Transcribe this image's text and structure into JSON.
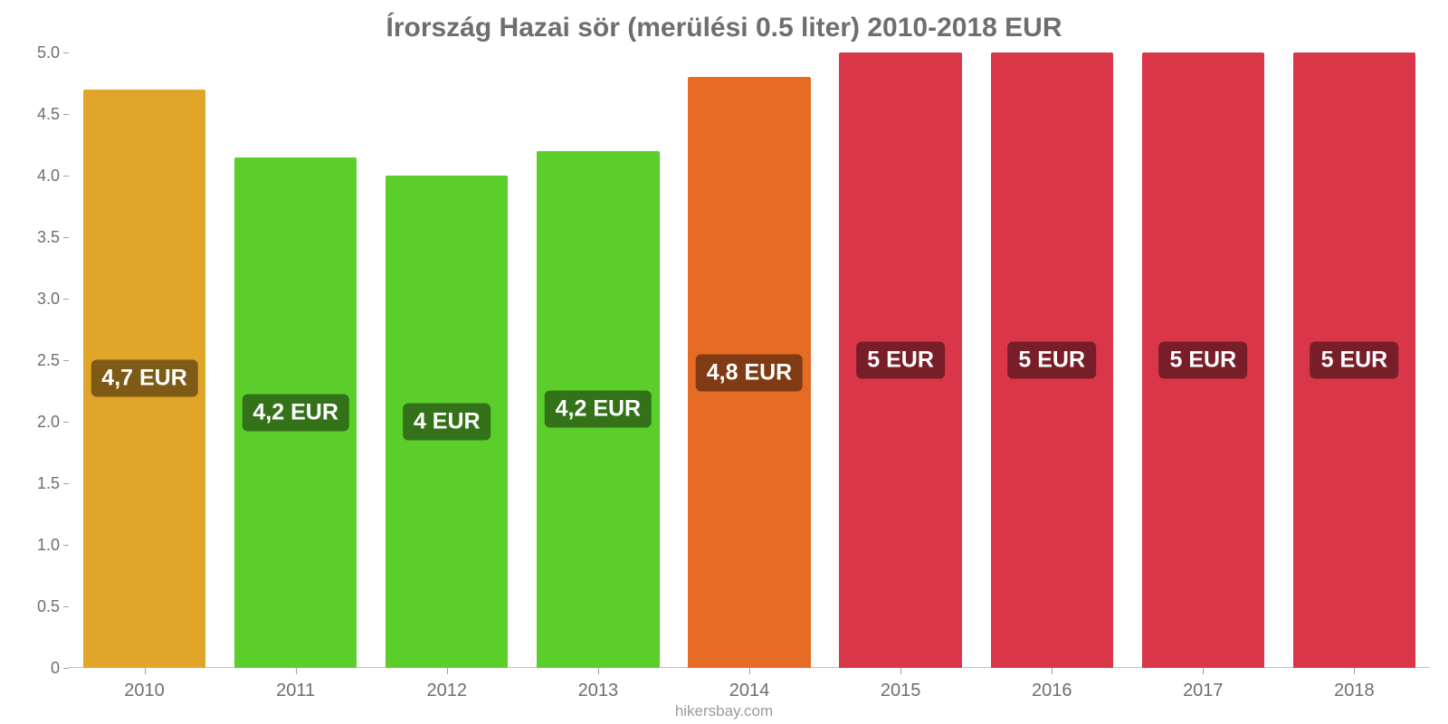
{
  "chart": {
    "type": "bar",
    "title": "Írország Hazai sör (merülési 0.5 liter) 2010-2018 EUR",
    "title_color": "#6e6e6e",
    "title_fontsize": 30,
    "background_color": "#ffffff",
    "axis_color": "#6e6e6e",
    "tick_label_color": "#6e6e6e",
    "tick_mark_color": "#a0a0a0",
    "baseline_color": "#bfbfbf",
    "ylim": [
      0,
      5.0
    ],
    "ytick_step": 0.5,
    "yticks": [
      "0",
      "0.5",
      "1.0",
      "1.5",
      "2.0",
      "2.5",
      "3.0",
      "3.5",
      "4.0",
      "4.5",
      "5.0"
    ],
    "categories": [
      "2010",
      "2011",
      "2012",
      "2013",
      "2014",
      "2015",
      "2016",
      "2017",
      "2018"
    ],
    "values": [
      4.7,
      4.15,
      4.0,
      4.2,
      4.8,
      5.0,
      5.0,
      5.0,
      5.0
    ],
    "value_labels": [
      "4,7 EUR",
      "4,2 EUR",
      "4 EUR",
      "4,2 EUR",
      "4,8 EUR",
      "5 EUR",
      "5 EUR",
      "5 EUR",
      "5 EUR"
    ],
    "bar_colors": [
      "#e1a52a",
      "#5bce2c",
      "#5bce2c",
      "#5bce2c",
      "#e66b24",
      "#d9364a",
      "#d9364a",
      "#d9364a",
      "#d9364a"
    ],
    "label_bg_colors": [
      "#7d5b17",
      "#337218",
      "#337218",
      "#337218",
      "#803b14",
      "#781e29",
      "#781e29",
      "#781e29",
      "#781e29"
    ],
    "bar_width_ratio": 0.81,
    "label_fontsize": 25,
    "x_label_fontsize": 20,
    "y_label_fontsize": 18,
    "attribution": "hikersbay.com",
    "attribution_color": "#9a9a9a"
  }
}
